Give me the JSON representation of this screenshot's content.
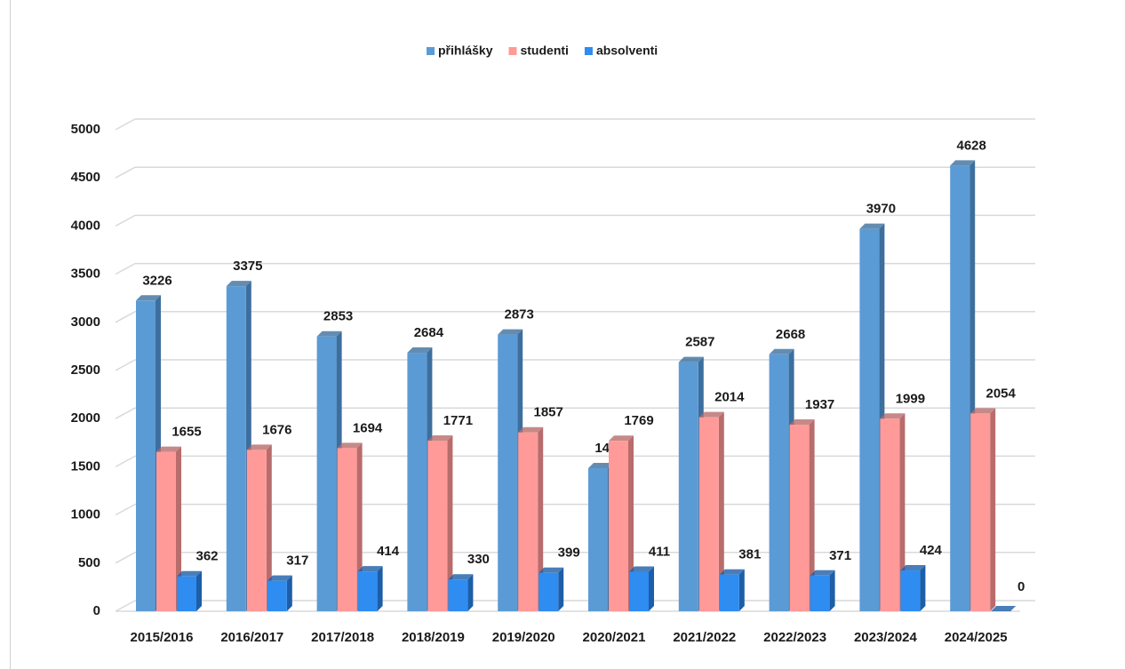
{
  "chart_data": {
    "type": "bar3d",
    "categories": [
      "2015/2016",
      "2016/2017",
      "2017/2018",
      "2018/2019",
      "2019/2020",
      "2020/2021",
      "2021/2022",
      "2022/2023",
      "2023/2024",
      "2024/2025"
    ],
    "series": [
      {
        "name": "přihlášky",
        "color": "#5b9bd5",
        "side": "#3d6f9e",
        "values": [
          3226,
          3375,
          2853,
          2684,
          2873,
          1485,
          2587,
          2668,
          3970,
          4628
        ]
      },
      {
        "name": "studenti",
        "color": "#ff9a99",
        "side": "#b86c6c",
        "values": [
          1655,
          1676,
          1694,
          1771,
          1857,
          1769,
          2014,
          1937,
          1999,
          2054
        ]
      },
      {
        "name": "absolventi",
        "color": "#2f8cf0",
        "side": "#1d5ea8",
        "values": [
          362,
          317,
          414,
          330,
          399,
          411,
          381,
          371,
          424,
          0
        ]
      }
    ],
    "ylim": [
      0,
      5000
    ],
    "yticks": [
      0,
      500,
      1000,
      1500,
      2000,
      2500,
      3000,
      3500,
      4000,
      4500,
      5000
    ],
    "grid": true,
    "legend": "top"
  }
}
